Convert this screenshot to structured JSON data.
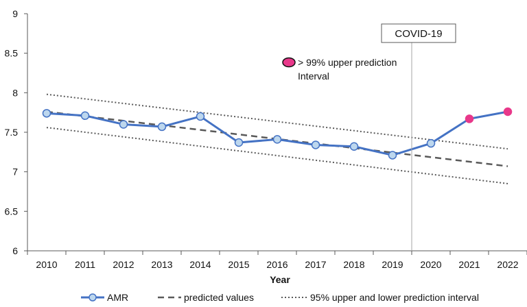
{
  "chart_data": {
    "type": "line",
    "title": "",
    "xlabel": "Year",
    "ylabel": "",
    "x": [
      2010,
      2011,
      2012,
      2013,
      2014,
      2015,
      2016,
      2017,
      2018,
      2019,
      2020,
      2021,
      2022
    ],
    "x_tick_labels": [
      "2010",
      "2011",
      "2012",
      "2013",
      "2014",
      "2015",
      "2016",
      "2017",
      "2018",
      "2019",
      "2020",
      "2021",
      "2022"
    ],
    "ylim": [
      6,
      9
    ],
    "y_tick_labels": [
      "6",
      "6.5",
      "7",
      "7.5",
      "8",
      "8.5",
      "9"
    ],
    "grid": false,
    "legend_position": "bottom",
    "series": [
      {
        "name": "AMR",
        "style": "solid-markers",
        "color": "#4472C4",
        "marker_color": "#BDD7EE",
        "values": [
          7.74,
          7.71,
          7.6,
          7.57,
          7.7,
          7.37,
          7.41,
          7.34,
          7.32,
          7.21,
          7.36,
          7.67,
          7.76
        ],
        "highlight_color": "#E8388A",
        "highlighted_x": [
          2021,
          2022
        ]
      },
      {
        "name": "predicted values",
        "style": "dashed",
        "color": "#595959",
        "endpoints": [
          {
            "x": 2010,
            "y": 7.76
          },
          {
            "x": 2022,
            "y": 7.07
          }
        ]
      },
      {
        "name": "95% upper and lower prediction interval",
        "style": "dotted",
        "color": "#595959",
        "upper_endpoints": [
          {
            "x": 2010,
            "y": 7.98
          },
          {
            "x": 2022,
            "y": 7.29
          }
        ],
        "lower_endpoints": [
          {
            "x": 2010,
            "y": 7.56
          },
          {
            "x": 2022,
            "y": 6.85
          }
        ]
      }
    ],
    "annotations": {
      "event_label": "COVID-19",
      "event_x": 2019.5,
      "highlight_note_line1": "> 99% upper prediction",
      "highlight_note_line2": "Interval"
    }
  }
}
